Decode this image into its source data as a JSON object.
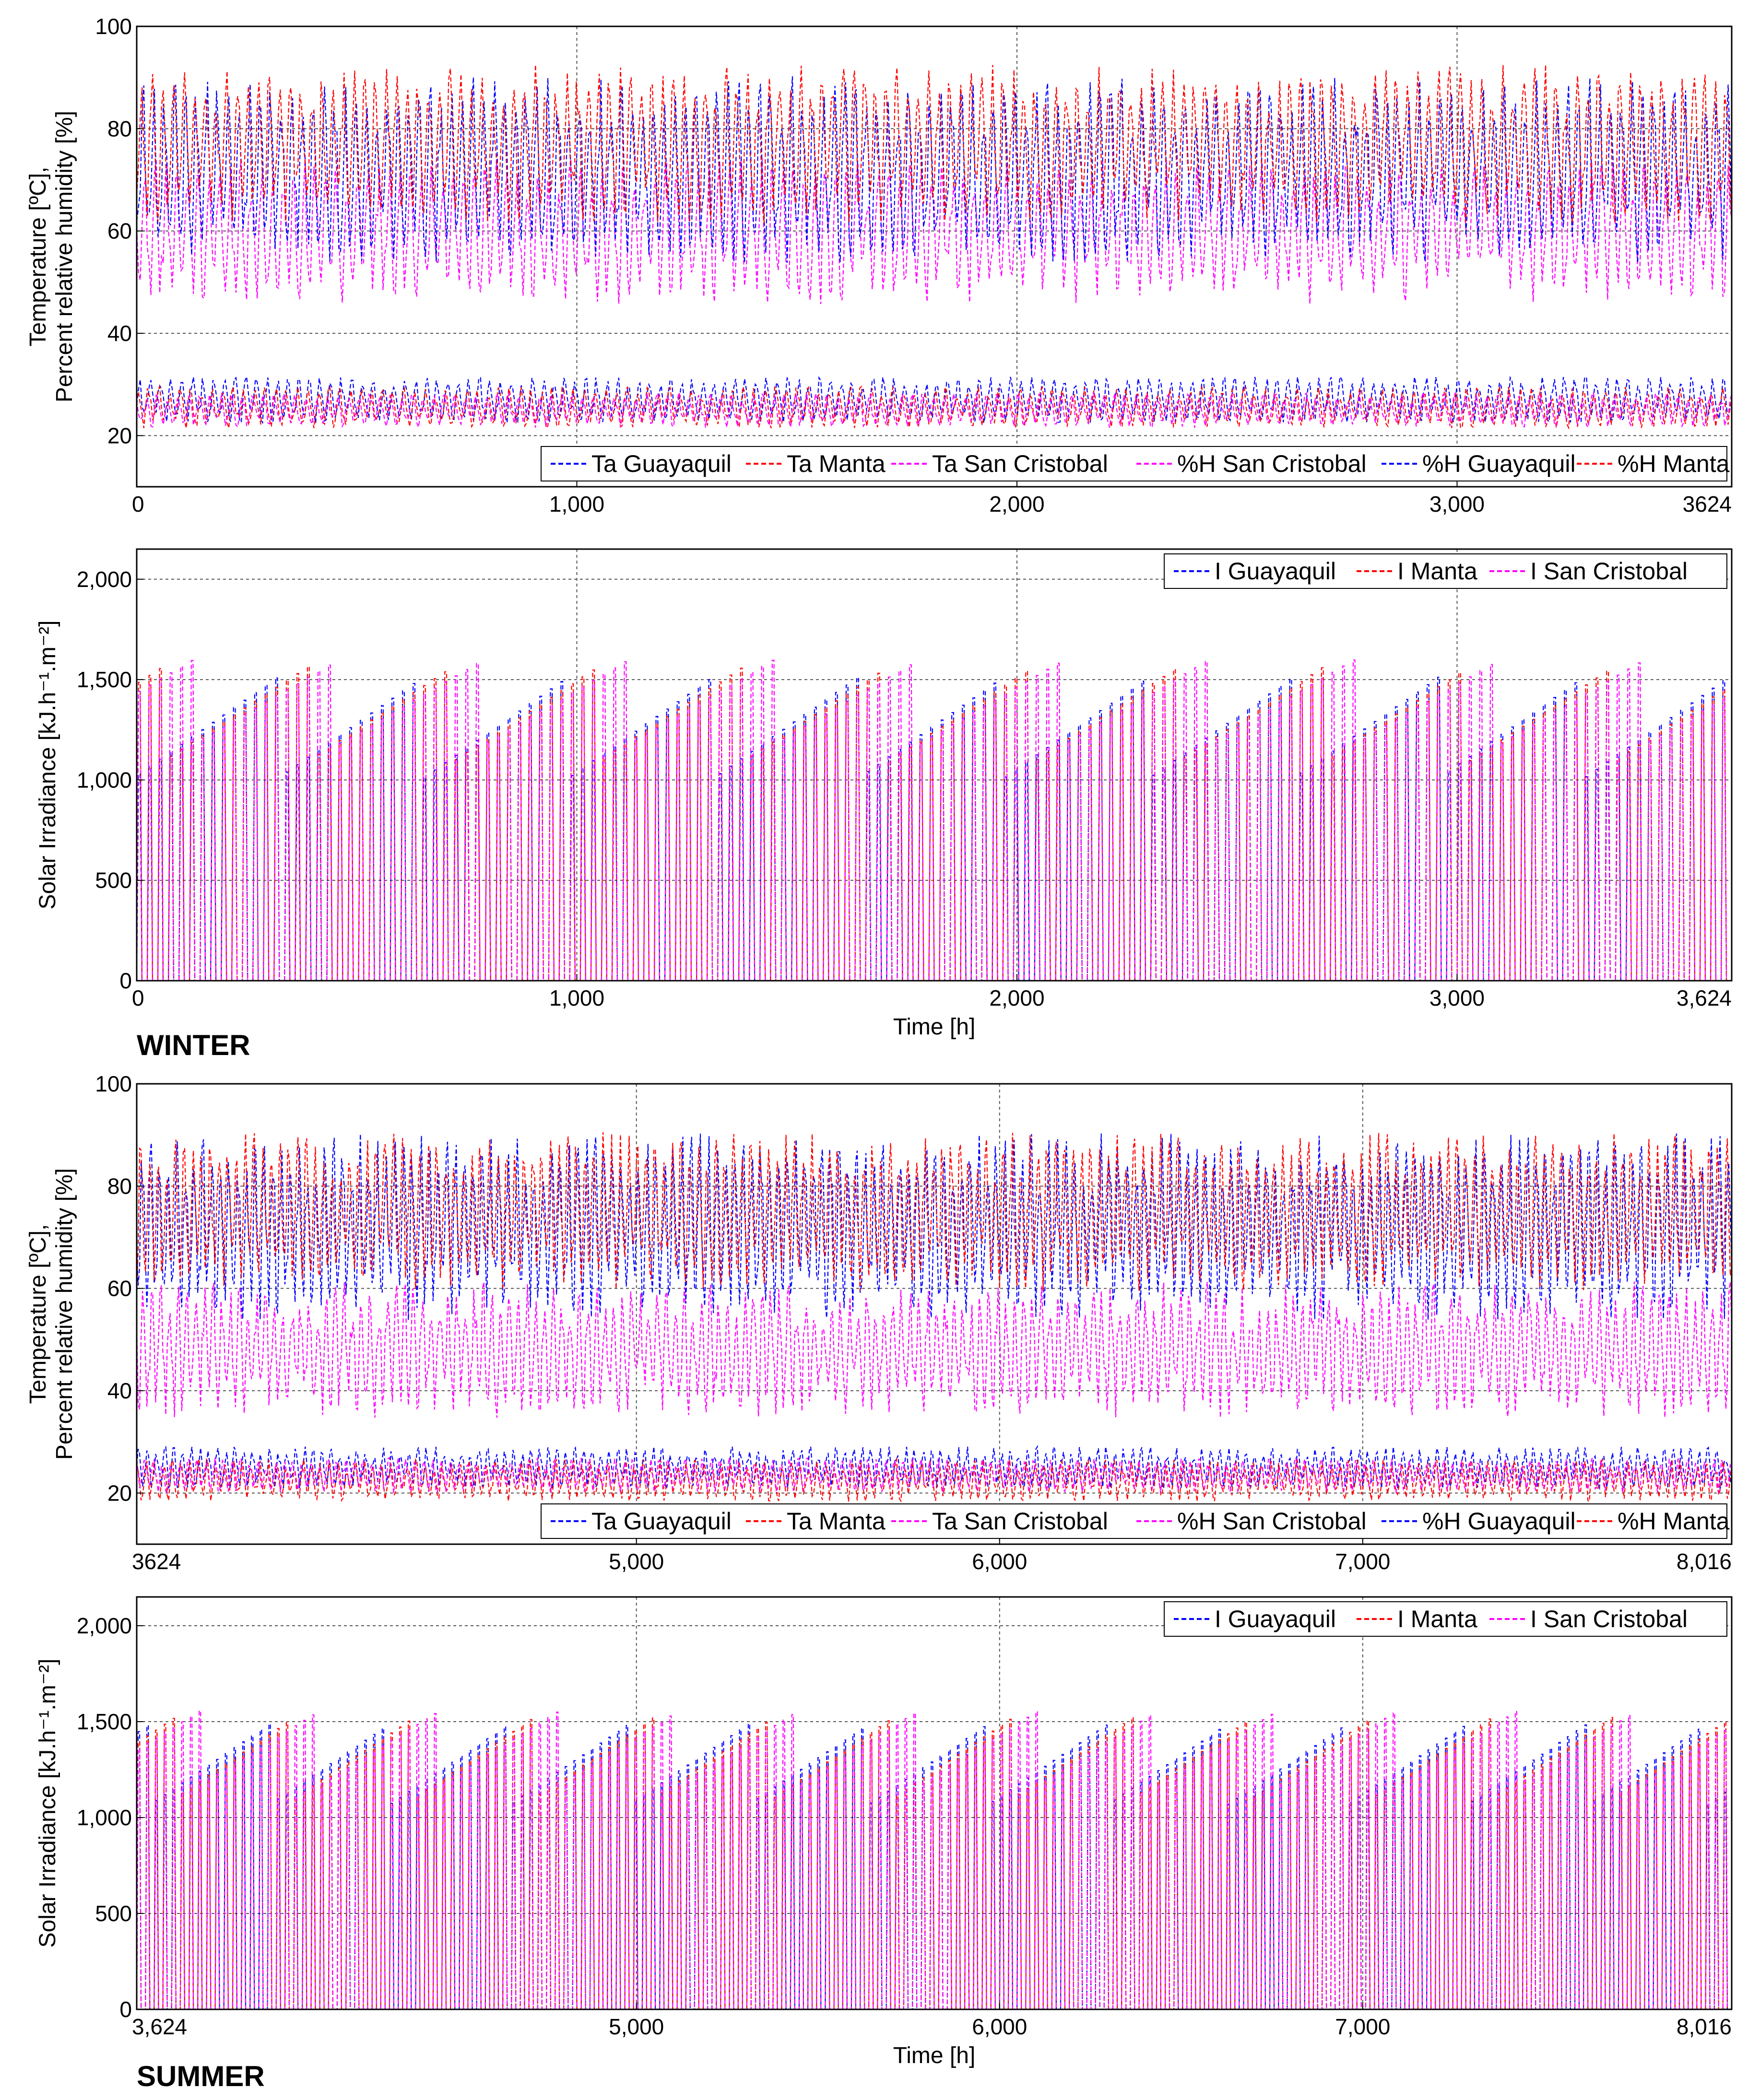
{
  "chart_data": [
    {
      "type": "line",
      "panel": "winter-temperature-humidity",
      "ylabel": [
        "Temperature [ºC],",
        "Percent relative humidity [%]"
      ],
      "xlabel": "",
      "xlim": [
        0,
        3624
      ],
      "ylim": [
        10,
        100
      ],
      "xticks": [
        0,
        1000,
        2000,
        3000,
        3624
      ],
      "xtick_labels": [
        "0",
        "1,000",
        "2,000",
        "3,000",
        "3624"
      ],
      "yticks": [
        20,
        40,
        60,
        80,
        100
      ],
      "ytick_labels": [
        "20",
        "40",
        "60",
        "80",
        "100"
      ],
      "grid": true,
      "legend_position": "bottom",
      "series": [
        {
          "name": "Ta Guayaquil",
          "color": "#0000ff",
          "base": 27,
          "amp": 3.5,
          "noise": 1.5,
          "cycles": 150,
          "seed": 11
        },
        {
          "name": "Ta Manta",
          "color": "#ff0000",
          "base": 25.5,
          "amp": 3,
          "noise": 1.5,
          "cycles": 150,
          "seed": 12
        },
        {
          "name": "Ta San Cristobal",
          "color": "#ff00ff",
          "base": 25,
          "amp": 2.5,
          "noise": 1.2,
          "cycles": 150,
          "seed": 13
        },
        {
          "name": "%H San Cristobal",
          "color": "#ff00ff",
          "base": 60,
          "amp": 10,
          "noise": 5,
          "cycles": 150,
          "seed": 14
        },
        {
          "name": "%H Guayaquil",
          "color": "#0000ff",
          "base": 72,
          "amp": 13,
          "noise": 6,
          "cycles": 150,
          "seed": 15
        },
        {
          "name": "%H Manta",
          "color": "#ff0000",
          "base": 77,
          "amp": 11,
          "noise": 5,
          "cycles": 150,
          "seed": 16
        }
      ]
    },
    {
      "type": "line",
      "panel": "winter-solar-irradiance",
      "ylabel": [
        "Solar Irradiance [kJ.h⁻¹.m⁻²]"
      ],
      "xlabel": "Time [h]",
      "xlim": [
        0,
        3624
      ],
      "ylim": [
        0,
        2150
      ],
      "xticks": [
        0,
        1000,
        2000,
        3000,
        3624
      ],
      "xtick_labels": [
        "0",
        "1,000",
        "2,000",
        "3,000",
        "3,624"
      ],
      "yticks": [
        0,
        500,
        1000,
        1500,
        2000
      ],
      "ytick_labels": [
        "0",
        "500",
        "1,000",
        "1,500",
        "2,000"
      ],
      "grid": true,
      "legend_position": "top-right",
      "series": [
        {
          "name": "I Guayaquil",
          "color": "#0000ff",
          "peak": 1500,
          "var": 300,
          "cycles": 151,
          "seed": 21
        },
        {
          "name": "I Manta",
          "color": "#ff0000",
          "peak": 1580,
          "var": 280,
          "cycles": 151,
          "seed": 22
        },
        {
          "name": "I San Cristobal",
          "color": "#ff00ff",
          "peak": 1650,
          "var": 250,
          "cycles": 151,
          "seed": 23
        }
      ],
      "season_label": "WINTER"
    },
    {
      "type": "line",
      "panel": "summer-temperature-humidity",
      "ylabel": [
        "Temperature [ºC],",
        "Percent relative humidity [%]"
      ],
      "xlabel": "",
      "xlim": [
        3624,
        8016
      ],
      "ylim": [
        10,
        100
      ],
      "xticks": [
        3624,
        5000,
        6000,
        7000,
        8016
      ],
      "xtick_labels": [
        "3624",
        "5,000",
        "6,000",
        "7,000",
        "8,016"
      ],
      "yticks": [
        20,
        40,
        60,
        80,
        100
      ],
      "ytick_labels": [
        "20",
        "40",
        "60",
        "80",
        "100"
      ],
      "grid": true,
      "legend_position": "bottom",
      "series": [
        {
          "name": "Ta Guayaquil",
          "color": "#0000ff",
          "base": 25,
          "amp": 3,
          "noise": 1.5,
          "cycles": 183,
          "seed": 31
        },
        {
          "name": "Ta Manta",
          "color": "#ff0000",
          "base": 22.5,
          "amp": 3,
          "noise": 1.5,
          "cycles": 183,
          "seed": 32
        },
        {
          "name": "Ta San Cristobal",
          "color": "#ff00ff",
          "base": 23.5,
          "amp": 2.5,
          "noise": 1.2,
          "cycles": 183,
          "seed": 33
        },
        {
          "name": "%H San Cristobal",
          "color": "#ff00ff",
          "base": 48,
          "amp": 9,
          "noise": 5,
          "cycles": 183,
          "seed": 34
        },
        {
          "name": "%H Guayaquil",
          "color": "#0000ff",
          "base": 72,
          "amp": 13,
          "noise": 6,
          "cycles": 183,
          "seed": 35
        },
        {
          "name": "%H Manta",
          "color": "#ff0000",
          "base": 75,
          "amp": 11,
          "noise": 5,
          "cycles": 183,
          "seed": 36
        }
      ]
    },
    {
      "type": "line",
      "panel": "summer-solar-irradiance",
      "ylabel": [
        "Solar Irradiance [kJ.h⁻¹.m⁻²]"
      ],
      "xlabel": "Time [h]",
      "xlim": [
        3624,
        8016
      ],
      "ylim": [
        0,
        2150
      ],
      "xticks": [
        3624,
        5000,
        6000,
        7000,
        8016
      ],
      "xtick_labels": [
        "3,624",
        "5,000",
        "6,000",
        "7,000",
        "8,016"
      ],
      "yticks": [
        0,
        500,
        1000,
        1500,
        2000
      ],
      "ytick_labels": [
        "0",
        "500",
        "1,000",
        "1,500",
        "2,000"
      ],
      "grid": true,
      "legend_position": "top-right",
      "series": [
        {
          "name": "I Guayaquil",
          "color": "#0000ff",
          "peak": 1520,
          "var": 250,
          "cycles": 183,
          "seed": 41
        },
        {
          "name": "I Manta",
          "color": "#ff0000",
          "peak": 1560,
          "var": 250,
          "cycles": 183,
          "seed": 42
        },
        {
          "name": "I San Cristobal",
          "color": "#ff00ff",
          "peak": 1620,
          "var": 230,
          "cycles": 183,
          "seed": 43
        }
      ],
      "season_label": "SUMMER"
    }
  ]
}
